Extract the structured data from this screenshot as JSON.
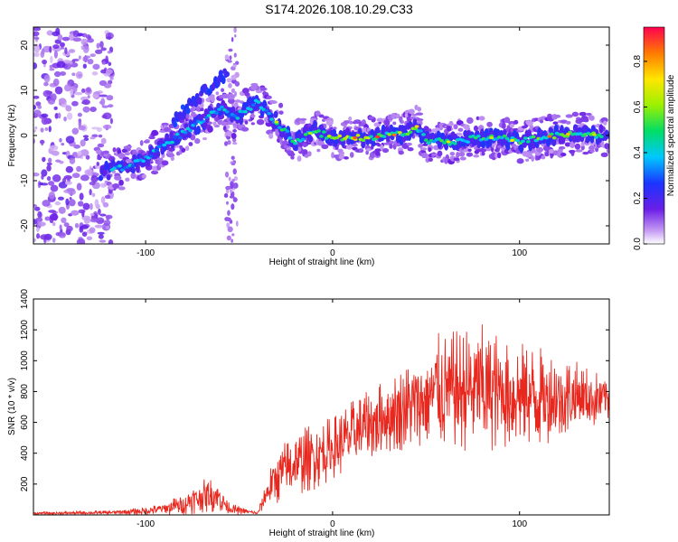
{
  "title": "S174.2026.108.10.29.C33",
  "charts": [
    {
      "type": "heatmap",
      "xlabel": "Height of straight line (km)",
      "ylabel": "Frequency (Hz)",
      "xlim": [
        -160,
        148
      ],
      "ylim": [
        -24,
        24
      ],
      "xticks": [
        -100,
        0,
        100
      ],
      "xtick_labels": [
        "-100",
        "0",
        "100"
      ],
      "yticks": [
        -20,
        -10,
        0,
        10,
        20
      ],
      "ytick_labels": [
        "-20",
        "-10",
        "0",
        "10",
        "20"
      ],
      "ridge_line": {
        "x": [
          -122,
          -110,
          -100,
          -90,
          -80,
          -70,
          -60,
          -52,
          -45,
          -40,
          -30,
          -20,
          -10,
          0,
          10,
          20,
          30,
          40,
          45,
          50,
          60,
          70,
          80,
          90,
          100,
          110,
          120,
          130,
          145
        ],
        "y": [
          -8,
          -7,
          -5,
          -2,
          0.5,
          3,
          6,
          4,
          6,
          7.5,
          3,
          -1.5,
          1,
          -0.5,
          -0.5,
          -0.5,
          0,
          0.5,
          2,
          -1,
          -1.5,
          -1,
          -0.5,
          -0.5,
          -1.5,
          -0.5,
          0,
          0.5,
          0
        ]
      },
      "secondary_branch": {
        "x": [
          -85,
          -78,
          -70,
          -62,
          -56
        ],
        "y": [
          3,
          6,
          9,
          12,
          14
        ]
      },
      "colorbar": {
        "label": "Normalized spectral amplitude",
        "range": [
          0,
          0.95
        ],
        "ticks": [
          0.0,
          0.2,
          0.4,
          0.6,
          0.8
        ],
        "tick_labels": [
          "0.0",
          "0.2",
          "0.4",
          "0.6",
          "0.8"
        ]
      }
    },
    {
      "type": "line",
      "xlabel": "Height of straight line (km)",
      "ylabel": "SNR (10 * v/v)",
      "xlim": [
        -160,
        148
      ],
      "ylim": [
        0,
        1400
      ],
      "xticks": [
        -100,
        0,
        100
      ],
      "xtick_labels": [
        "-100",
        "0",
        "100"
      ],
      "yticks": [
        200,
        400,
        600,
        800,
        1000,
        1200,
        1400
      ],
      "ytick_labels": [
        "200",
        "400",
        "600",
        "800",
        "1000",
        "1200",
        "1400"
      ],
      "line_color": "#e8281e",
      "envelope": {
        "x": [
          -160,
          -120,
          -100,
          -90,
          -80,
          -70,
          -62,
          -55,
          -45,
          -40,
          -35,
          -30,
          -20,
          -10,
          0,
          10,
          20,
          30,
          40,
          50,
          55,
          60,
          70,
          80,
          90,
          100,
          110,
          120,
          130,
          140,
          148
        ],
        "mean": [
          10,
          15,
          25,
          40,
          70,
          120,
          130,
          40,
          20,
          10,
          150,
          250,
          330,
          380,
          430,
          520,
          580,
          650,
          700,
          760,
          800,
          800,
          810,
          820,
          800,
          790,
          770,
          760,
          760,
          750,
          760
        ],
        "amplitude": [
          10,
          12,
          25,
          40,
          70,
          110,
          110,
          40,
          15,
          10,
          100,
          180,
          210,
          220,
          210,
          220,
          230,
          250,
          280,
          300,
          380,
          380,
          400,
          420,
          380,
          340,
          330,
          300,
          240,
          190,
          150
        ]
      }
    }
  ]
}
